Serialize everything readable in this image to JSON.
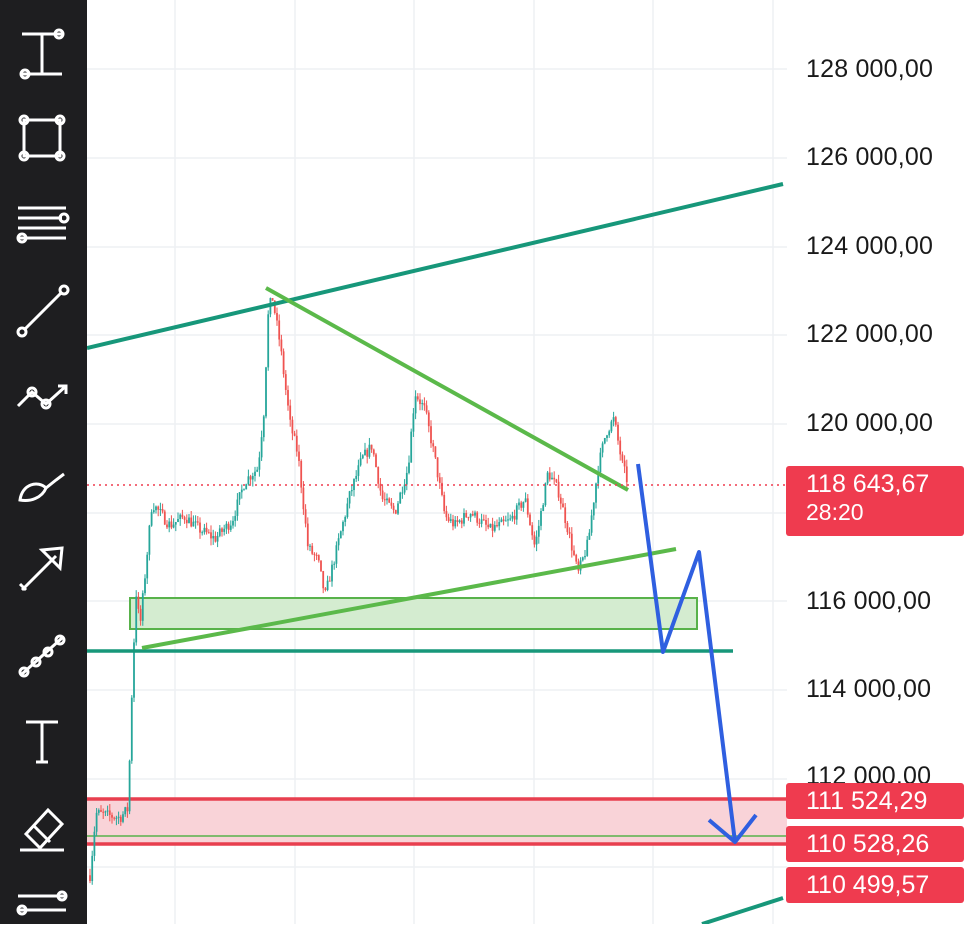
{
  "toolbar": {
    "tools": [
      {
        "name": "vertical-measure-icon"
      },
      {
        "name": "rectangle-icon"
      },
      {
        "name": "horizontal-lines-icon"
      },
      {
        "name": "trend-line-icon"
      },
      {
        "name": "polyline-icon"
      },
      {
        "name": "brush-icon"
      },
      {
        "name": "arrow-icon"
      },
      {
        "name": "path-icon"
      },
      {
        "name": "text-icon"
      },
      {
        "name": "eraser-icon"
      },
      {
        "name": "lines-settings-icon"
      }
    ]
  },
  "price_axis": {
    "labels": [
      "128 000,00",
      "126 000,00",
      "124 000,00",
      "122 000,00",
      "120 000,00",
      "116 000,00",
      "114 000,00",
      "112 000,00"
    ]
  },
  "badges": {
    "current_price": "118 643,67",
    "countdown": "28:20",
    "level_upper": "111 524,29",
    "level_mid": "110 528,26",
    "level_lower": "110 499,57"
  },
  "colors": {
    "up": "#26a69a",
    "down": "#ef5350",
    "channel": "#17977a",
    "triangle": "#5bb94a",
    "projection": "#2f5fe0",
    "badge": "#ef3b4f"
  },
  "chart_data": {
    "type": "candlestick",
    "ylim": [
      109500,
      129500
    ],
    "current_price": 118643.67,
    "horizontal_levels": [
      114900,
      111524.29,
      110528.26,
      110499.57
    ]
  }
}
